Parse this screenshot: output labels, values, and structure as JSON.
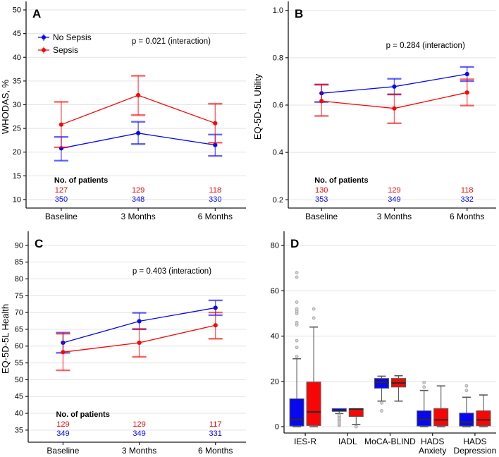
{
  "figure": {
    "colors": {
      "no_sepsis": "#0808f0",
      "sepsis": "#f80606",
      "outlier_fill": "#d4d4d4",
      "outlier_stroke": "#9e9e9e",
      "grid": "#e3e3e3",
      "axis": "#1a1a1a",
      "box_stroke": "#5a5a5a",
      "median": "#2b2b2b",
      "text": "#000000"
    }
  },
  "chart_data": [
    {
      "type": "line",
      "panel": "A",
      "ylabel": "WHODAS, %",
      "categories": [
        "Baseline",
        "3 Months",
        "6 Months"
      ],
      "ylim": [
        8.2,
        50.9
      ],
      "yticks": [
        10,
        15,
        20,
        25,
        30,
        35,
        40,
        45,
        50
      ],
      "ytick_labels": [
        "10",
        "15",
        "20",
        "25",
        "30",
        "35",
        "40",
        "45",
        "50"
      ],
      "grid": true,
      "legend_position": "top-left",
      "legend": [
        "No Sepsis",
        "Sepsis"
      ],
      "annotation": "p = 0.021 (interaction)",
      "series": [
        {
          "name": "No Sepsis",
          "color_key": "no_sepsis",
          "values": [
            20.8,
            24.0,
            21.5
          ],
          "ci_low": [
            18.2,
            21.7,
            19.2
          ],
          "ci_high": [
            23.2,
            26.4,
            23.7
          ]
        },
        {
          "name": "Sepsis",
          "color_key": "sepsis",
          "values": [
            25.8,
            32.0,
            26.1
          ],
          "ci_low": [
            21.0,
            27.8,
            22.0
          ],
          "ci_high": [
            30.6,
            36.1,
            30.2
          ]
        }
      ],
      "patients_label": "No. of patients",
      "patients_rows": [
        {
          "color_key": "sepsis",
          "values": [
            "127",
            "129",
            "118"
          ]
        },
        {
          "color_key": "no_sepsis",
          "values": [
            "350",
            "348",
            "330"
          ]
        }
      ]
    },
    {
      "type": "line",
      "panel": "B",
      "ylabel": "EQ-5D-5L Utility",
      "categories": [
        "Baseline",
        "3 Months",
        "6 Months"
      ],
      "ylim": [
        0.165,
        1.02
      ],
      "yticks": [
        0.2,
        0.4,
        0.6,
        0.8,
        1.0
      ],
      "ytick_labels": [
        "0.2",
        "0.4",
        "0.6",
        "0.8",
        "1.0"
      ],
      "grid": true,
      "annotation": "p = 0.284 (interaction)",
      "series": [
        {
          "name": "No Sepsis",
          "color_key": "no_sepsis",
          "values": [
            0.65,
            0.678,
            0.731
          ],
          "ci_low": [
            0.613,
            0.645,
            0.701
          ],
          "ci_high": [
            0.687,
            0.711,
            0.761
          ]
        },
        {
          "name": "Sepsis",
          "color_key": "sepsis",
          "values": [
            0.617,
            0.586,
            0.653
          ],
          "ci_low": [
            0.554,
            0.523,
            0.598
          ],
          "ci_high": [
            0.686,
            0.645,
            0.709
          ]
        }
      ],
      "patients_label": "No. of patients",
      "patients_rows": [
        {
          "color_key": "sepsis",
          "values": [
            "130",
            "129",
            "118"
          ]
        },
        {
          "color_key": "no_sepsis",
          "values": [
            "353",
            "349",
            "332"
          ]
        }
      ]
    },
    {
      "type": "line",
      "panel": "C",
      "ylabel": "EQ-5D-5L Health",
      "categories": [
        "Baseline",
        "3 Months",
        "6 Months"
      ],
      "ylim": [
        31.4,
        92.9
      ],
      "yticks": [
        35,
        40,
        45,
        50,
        55,
        60,
        65,
        70,
        75,
        80,
        85,
        90
      ],
      "ytick_labels": [
        "35",
        "40",
        "45",
        "50",
        "55",
        "60",
        "65",
        "70",
        "75",
        "80",
        "85",
        "90"
      ],
      "grid": true,
      "annotation": "p = 0.403 (interaction)",
      "series": [
        {
          "name": "No Sepsis",
          "color_key": "no_sepsis",
          "values": [
            61.0,
            67.4,
            71.4
          ],
          "ci_low": [
            58.0,
            65.0,
            69.2
          ],
          "ci_high": [
            64.0,
            69.9,
            73.6
          ]
        },
        {
          "name": "Sepsis",
          "color_key": "sepsis",
          "values": [
            58.2,
            61.0,
            66.2
          ],
          "ci_low": [
            52.8,
            56.8,
            62.2
          ],
          "ci_high": [
            63.7,
            65.1,
            70.0
          ]
        }
      ],
      "patients_label": "No. of patients",
      "patients_rows": [
        {
          "color_key": "sepsis",
          "values": [
            "129",
            "129",
            "117"
          ]
        },
        {
          "color_key": "no_sepsis",
          "values": [
            "349",
            "349",
            "331"
          ]
        }
      ]
    },
    {
      "type": "box",
      "panel": "D",
      "ylabel": "",
      "categories": [
        "IES-R",
        "IADL",
        "MoCA-BLIND",
        "HADS\nAnxiety",
        "HADS\nDepression"
      ],
      "ylim": [
        -2.8,
        84.4
      ],
      "yticks": [
        0,
        20,
        40,
        60,
        80
      ],
      "ytick_labels": [
        "0",
        "20",
        "40",
        "60",
        "80"
      ],
      "grid": true,
      "series": [
        {
          "name": "No Sepsis",
          "color_key": "no_sepsis",
          "boxes": [
            {
              "whislo": 0,
              "q1": 0.3,
              "med": 3.2,
              "q3": 12.3,
              "whishi": 30,
              "outliers": [
                31,
                35,
                38,
                45,
                46,
                50,
                51,
                52,
                55,
                66,
                68
              ]
            },
            {
              "whislo": 5.8,
              "q1": 6.8,
              "med": 7.0,
              "q3": 8,
              "whishi": 8,
              "outliers": [
                0.5,
                1.1,
                1.8,
                2.5,
                3.1,
                3.8,
                4.4,
                5.0
              ]
            },
            {
              "whislo": 11.3,
              "q1": 17.0,
              "med": 19.5,
              "q3": 21.3,
              "whishi": 22.3,
              "outliers": [
                10.5,
                7.0
              ]
            },
            {
              "whislo": 0,
              "q1": 0.3,
              "med": 3.2,
              "q3": 7.0,
              "whishi": 16,
              "outliers": [
                17.5,
                19.5
              ]
            },
            {
              "whislo": 0,
              "q1": 0.3,
              "med": 2.0,
              "q3": 6.0,
              "whishi": 13,
              "outliers": [
                16,
                18
              ]
            }
          ]
        },
        {
          "name": "Sepsis",
          "color_key": "sepsis",
          "boxes": [
            {
              "whislo": 0,
              "q1": 0.5,
              "med": 6.5,
              "q3": 19.7,
              "whishi": 44,
              "outliers": [
                48,
                52
              ]
            },
            {
              "whislo": 1,
              "q1": 4.5,
              "med": 7.8,
              "q3": 8,
              "whishi": 8,
              "outliers": [
                0
              ]
            },
            {
              "whislo": 11.3,
              "q1": 17.5,
              "med": 19.3,
              "q3": 21.3,
              "whishi": 22.5,
              "outliers": []
            },
            {
              "whislo": 0,
              "q1": 0.4,
              "med": 3.0,
              "q3": 8.0,
              "whishi": 18,
              "outliers": []
            },
            {
              "whislo": 0,
              "q1": 0.4,
              "med": 3.0,
              "q3": 7.0,
              "whishi": 14,
              "outliers": []
            }
          ]
        }
      ]
    }
  ]
}
